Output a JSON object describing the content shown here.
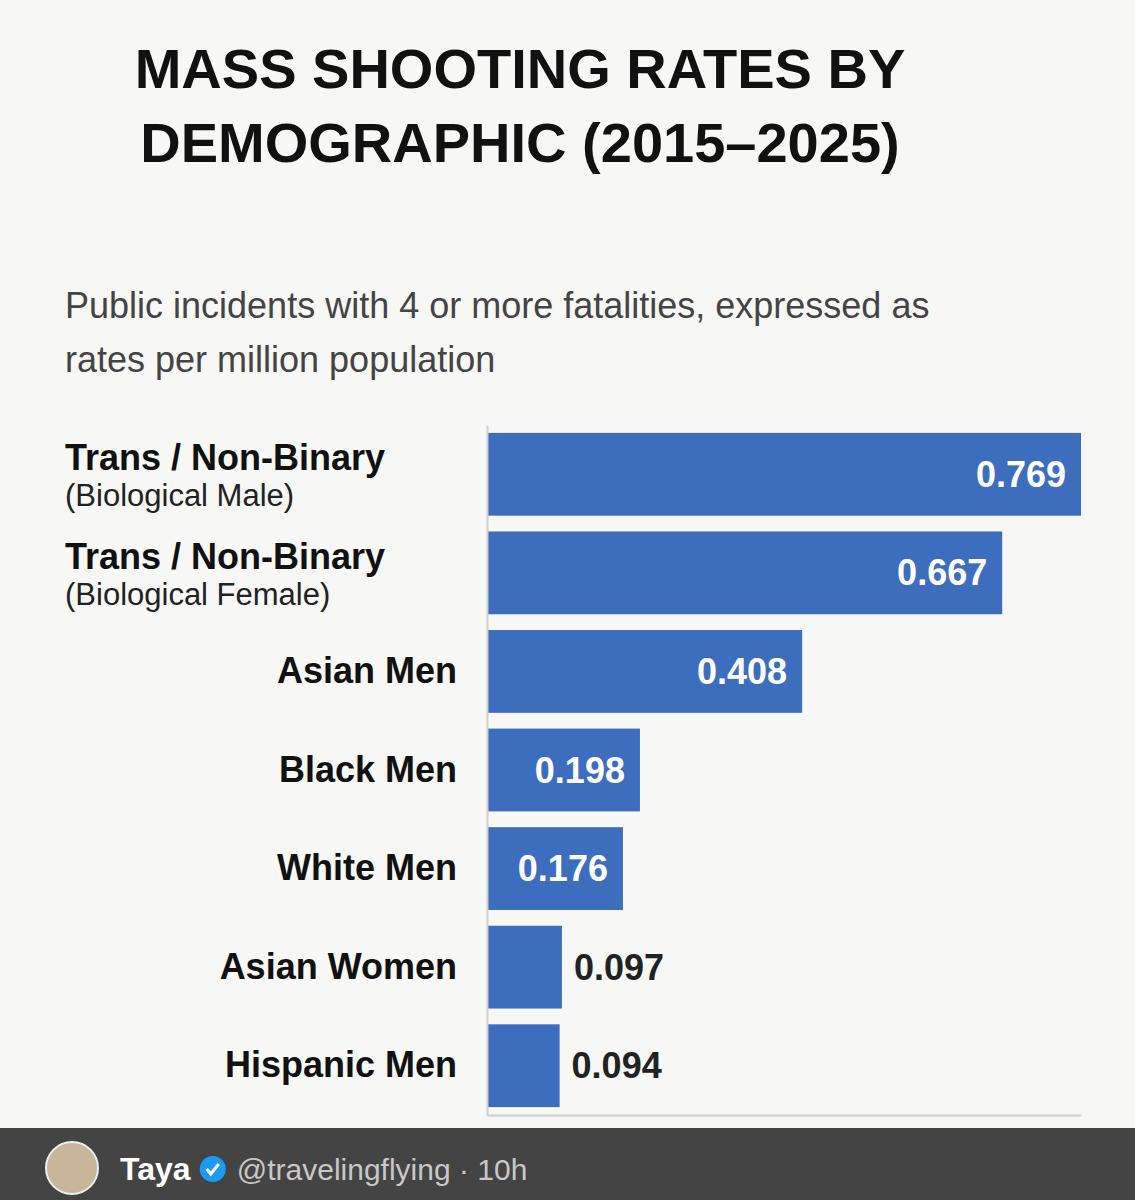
{
  "chart_data": {
    "type": "bar",
    "orientation": "horizontal",
    "title": "MASS SHOOTING RATES BY DEMOGRAPHIC (2015–2025)",
    "subtitle": "Public incidents with 4 or more fatalities, expressed as rates per million population",
    "categories": [
      "Trans / Non-Binary (Biological Male)",
      "Trans / Non-Binary (Biological Female)",
      "Asian Men",
      "Black Men",
      "White Men",
      "Asian Women",
      "Hispanic Men"
    ],
    "values": [
      0.769,
      0.667,
      0.408,
      0.198,
      0.176,
      0.097,
      0.094
    ],
    "color": "#3d6dbd",
    "xlim": [
      0,
      0.769
    ],
    "data_labels": true,
    "tick_labels": "y",
    "grid": false
  },
  "post": {
    "author": "Taya",
    "handle": "@travelingflying · 10h"
  }
}
